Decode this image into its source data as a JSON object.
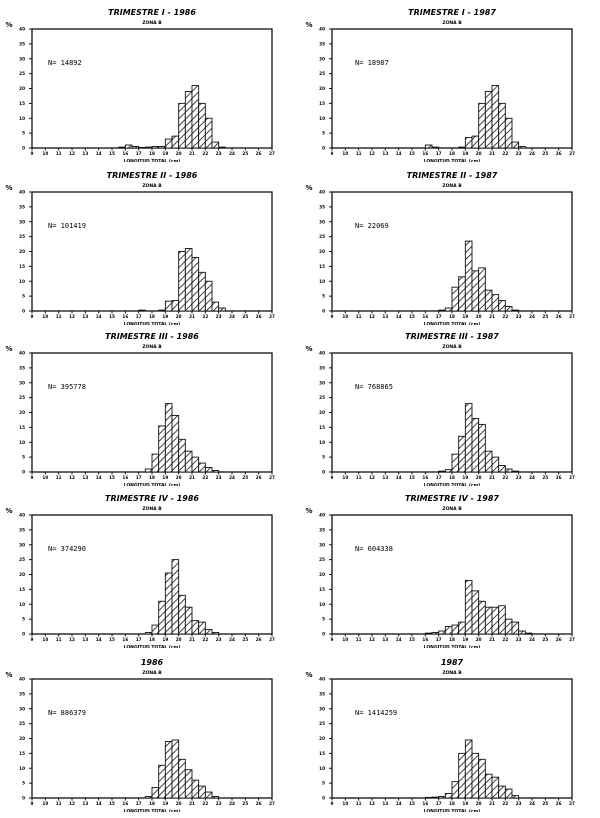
{
  "page": {
    "bar_color": "#111111",
    "background": "#ffffff"
  },
  "common": {
    "subtitle": "ZONA B",
    "ylabel": "%",
    "xlabel": "LONGITUD TOTAL (cm)",
    "yticks": [
      0,
      5,
      10,
      15,
      20,
      25,
      30,
      35,
      40
    ],
    "xticks": [
      9,
      10,
      11,
      12,
      13,
      14,
      15,
      16,
      17,
      18,
      19,
      20,
      21,
      22,
      23,
      24,
      25,
      26,
      27
    ],
    "bin_width": 0.5
  },
  "chart_data": [
    {
      "type": "bar",
      "title": "TRIMESTRE I - 1986",
      "subtitle": "ZONA B",
      "n_label": "N= 14892",
      "xlabel": "LONGITUD TOTAL (cm)",
      "ylabel": "%",
      "xlim": [
        9,
        27
      ],
      "ylim": [
        0,
        40
      ],
      "bins": [
        15.5,
        16.0,
        16.5,
        17.0,
        17.5,
        18.0,
        18.5,
        19.0,
        19.5,
        20.0,
        20.5,
        21.0,
        21.5,
        22.0,
        22.5,
        23.0
      ],
      "values": [
        0.3,
        1,
        0.5,
        0.2,
        0.3,
        0.5,
        0.5,
        3,
        4,
        15,
        19,
        21,
        15,
        10,
        2,
        0.3
      ]
    },
    {
      "type": "bar",
      "title": "TRIMESTRE I - 1987",
      "subtitle": "ZONA B",
      "n_label": "N= 18987",
      "xlabel": "LONGITUD TOTAL (cm)",
      "ylabel": "%",
      "xlim": [
        9,
        27
      ],
      "ylim": [
        0,
        40
      ],
      "bins": [
        16.0,
        16.5,
        18.5,
        19.0,
        19.5,
        20.0,
        20.5,
        21.0,
        21.5,
        22.0,
        22.5,
        23.0
      ],
      "values": [
        1,
        0.3,
        0.3,
        3.5,
        4,
        15,
        19,
        21,
        15,
        10,
        2,
        0.5
      ]
    },
    {
      "type": "bar",
      "title": "TRIMESTRE II - 1986",
      "subtitle": "ZONA B",
      "n_label": "N= 101419",
      "xlabel": "LONGITUD TOTAL (cm)",
      "ylabel": "%",
      "xlim": [
        9,
        27
      ],
      "ylim": [
        0,
        40
      ],
      "bins": [
        17.0,
        18.5,
        19.0,
        19.5,
        20.0,
        20.5,
        21.0,
        21.5,
        22.0,
        22.5,
        23.0
      ],
      "values": [
        0.3,
        0.3,
        3.3,
        3.5,
        20,
        21,
        18,
        13,
        10,
        3,
        1
      ]
    },
    {
      "type": "bar",
      "title": "TRIMESTRE II - 1987",
      "subtitle": "ZONA B",
      "n_label": "N= 22069",
      "xlabel": "LONGITUD TOTAL (cm)",
      "ylabel": "%",
      "xlim": [
        9,
        27
      ],
      "ylim": [
        0,
        40
      ],
      "bins": [
        17.0,
        17.5,
        18.0,
        18.5,
        19.0,
        19.5,
        20.0,
        20.5,
        21.0,
        21.5,
        22.0,
        22.5
      ],
      "values": [
        0.3,
        1,
        8,
        11.5,
        23.5,
        13.5,
        14.5,
        7,
        5.5,
        3.5,
        1.5,
        0.3
      ]
    },
    {
      "type": "bar",
      "title": "TRIMESTRE III - 1986",
      "subtitle": "ZONA B",
      "n_label": "N= 395778",
      "xlabel": "LONGITUD TOTAL (cm)",
      "ylabel": "%",
      "xlim": [
        9,
        27
      ],
      "ylim": [
        0,
        40
      ],
      "bins": [
        17.5,
        18.0,
        18.5,
        19.0,
        19.5,
        20.0,
        20.5,
        21.0,
        21.5,
        22.0,
        22.5
      ],
      "values": [
        1,
        6,
        15.5,
        23,
        19,
        11,
        7,
        5,
        3,
        1.5,
        0.5
      ]
    },
    {
      "type": "bar",
      "title": "TRIMESTRE III - 1987",
      "subtitle": "ZONA B",
      "n_label": "N= 768865",
      "xlabel": "LONGITUD TOTAL (cm)",
      "ylabel": "%",
      "xlim": [
        9,
        27
      ],
      "ylim": [
        0,
        40
      ],
      "bins": [
        17.0,
        17.5,
        18.0,
        18.5,
        19.0,
        19.5,
        20.0,
        20.5,
        21.0,
        21.5,
        22.0,
        22.5
      ],
      "values": [
        0.3,
        0.8,
        6,
        12,
        23,
        18,
        16,
        7,
        5,
        2.2,
        1,
        0.3
      ]
    },
    {
      "type": "bar",
      "title": "TRIMESTRE IV - 1986",
      "subtitle": "ZONA B",
      "n_label": "N= 374290",
      "xlabel": "LONGITUD TOTAL (cm)",
      "ylabel": "%",
      "xlim": [
        9,
        27
      ],
      "ylim": [
        0,
        40
      ],
      "bins": [
        17.5,
        18.0,
        18.5,
        19.0,
        19.5,
        20.0,
        20.5,
        21.0,
        21.5,
        22.0,
        22.5
      ],
      "values": [
        0.5,
        3,
        11,
        20.5,
        25,
        13,
        9,
        4.5,
        4,
        1.5,
        0.5
      ]
    },
    {
      "type": "bar",
      "title": "TRIMESTRE IV - 1987",
      "subtitle": "ZONA B",
      "n_label": "N= 604338",
      "xlabel": "LONGITUD TOTAL (cm)",
      "ylabel": "%",
      "xlim": [
        9,
        27
      ],
      "ylim": [
        0,
        40
      ],
      "bins": [
        16.0,
        16.5,
        17.0,
        17.5,
        18.0,
        18.5,
        19.0,
        19.5,
        20.0,
        20.5,
        21.0,
        21.5,
        22.0,
        22.5,
        23.0,
        23.5
      ],
      "values": [
        0.3,
        0.5,
        1,
        2.5,
        3,
        4,
        18,
        14.5,
        11,
        9,
        9,
        9.5,
        5,
        4,
        1,
        0.3
      ]
    },
    {
      "type": "bar",
      "title": "1986",
      "subtitle": "ZONA B",
      "n_label": "N= 886379",
      "xlabel": "LONGITUD TOTAL (cm)",
      "ylabel": "%",
      "xlim": [
        9,
        27
      ],
      "ylim": [
        0,
        40
      ],
      "bins": [
        17.5,
        18.0,
        18.5,
        19.0,
        19.5,
        20.0,
        20.5,
        21.0,
        21.5,
        22.0,
        22.5
      ],
      "values": [
        0.5,
        3.5,
        11,
        19,
        19.5,
        13,
        9.5,
        6,
        4,
        2,
        0.5
      ]
    },
    {
      "type": "bar",
      "title": "1987",
      "subtitle": "ZONA B",
      "n_label": "N= 1414259",
      "xlabel": "LONGITUD TOTAL (cm)",
      "ylabel": "%",
      "xlim": [
        9,
        27
      ],
      "ylim": [
        0,
        40
      ],
      "bins": [
        16.0,
        16.5,
        17.0,
        17.5,
        18.0,
        18.5,
        19.0,
        19.5,
        20.0,
        20.5,
        21.0,
        21.5,
        22.0,
        22.5
      ],
      "values": [
        0.2,
        0.3,
        0.5,
        1.5,
        5.5,
        15,
        19.5,
        15,
        13,
        8,
        7,
        4,
        3,
        0.8
      ]
    }
  ]
}
